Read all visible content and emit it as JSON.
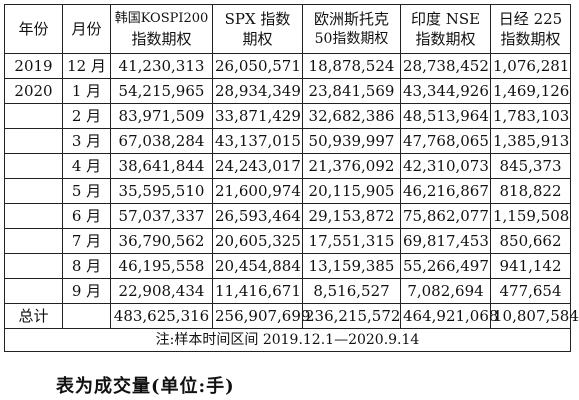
{
  "table": {
    "headers": [
      [
        "年份"
      ],
      [
        "月份"
      ],
      [
        "韩国KOSPI200",
        "指数期权"
      ],
      [
        "SPX 指数",
        "期权"
      ],
      [
        "欧洲斯托克",
        "50指数期权"
      ],
      [
        "印度 NSE",
        "指数期权"
      ],
      [
        "日经 225",
        "指数期权"
      ]
    ],
    "rows": [
      [
        "2019",
        "12 月",
        "41,230,313",
        "26,050,571",
        "18,878,524",
        "28,738,452",
        "1,076,281"
      ],
      [
        "2020",
        "1 月",
        "54,215,965",
        "28,934,349",
        "23,841,569",
        "43,344,926",
        "1,469,126"
      ],
      [
        "",
        "2 月",
        "83,971,509",
        "33,871,429",
        "32,682,386",
        "48,513,964",
        "1,783,103"
      ],
      [
        "",
        "3 月",
        "67,038,284",
        "43,137,015",
        "50,939,997",
        "47,768,065",
        "1,385,913"
      ],
      [
        "",
        "4 月",
        "38,641,844",
        "24,243,017",
        "21,376,092",
        "42,310,073",
        "845,373"
      ],
      [
        "",
        "5 月",
        "35,595,510",
        "21,600,974",
        "20,115,905",
        "46,216,867",
        "818,822"
      ],
      [
        "",
        "6 月",
        "57,037,337",
        "26,593,464",
        "29,153,872",
        "75,862,077",
        "1,159,508"
      ],
      [
        "",
        "7 月",
        "36,790,562",
        "20,605,325",
        "17,551,315",
        "69,817,453",
        "850,662"
      ],
      [
        "",
        "8 月",
        "46,195,558",
        "20,454,884",
        "13,159,385",
        "55,266,497",
        "941,142"
      ],
      [
        "",
        "9 月",
        "22,908,434",
        "11,416,671",
        "8,516,527",
        "7,082,694",
        "477,654"
      ]
    ],
    "total": {
      "label": "总计",
      "values": [
        "483,625,316",
        "256,907,699",
        "236,215,572",
        "464,921,068",
        "10,807,584"
      ]
    },
    "note": "注:样本时间区间 2019.12.1—2020.9.14"
  },
  "caption": "表为成交量(单位:手)"
}
